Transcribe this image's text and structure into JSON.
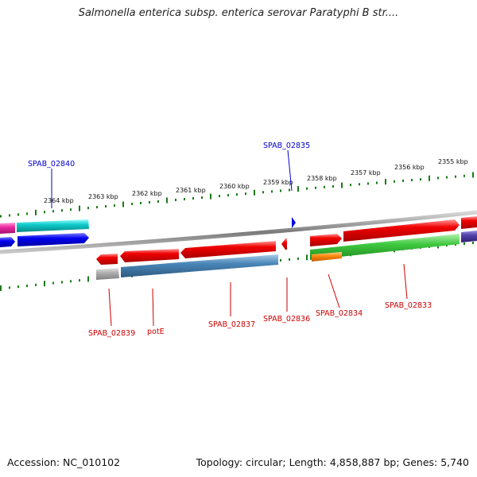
{
  "title": "Salmonella enterica subsp. enterica serovar Paratyphi B str....",
  "footer": {
    "accession": "Accession: NC_010102",
    "topology": "Topology: circular; Length: 4,858,887 bp; Genes: 5,740"
  },
  "colors": {
    "forward_label": "#0000cc",
    "reverse_label": "#cc0000",
    "tick": "#1a7a1a",
    "backbone": "#888888"
  },
  "scale_labels": [
    "2364 kbp",
    "2363 kbp",
    "2362 kbp",
    "2361 kbp",
    "2360 kbp",
    "2359 kbp",
    "2358 kbp",
    "2357 kbp",
    "2356 kbp",
    "2355 kbp"
  ],
  "gene_labels": {
    "forward": [
      "SPAB_02840",
      "SPAB_02835"
    ],
    "reverse": [
      "SPAB_02839",
      "potE",
      "SPAB_02837",
      "SPAB_02836",
      "SPAB_02834",
      "SPAB_02833"
    ]
  }
}
